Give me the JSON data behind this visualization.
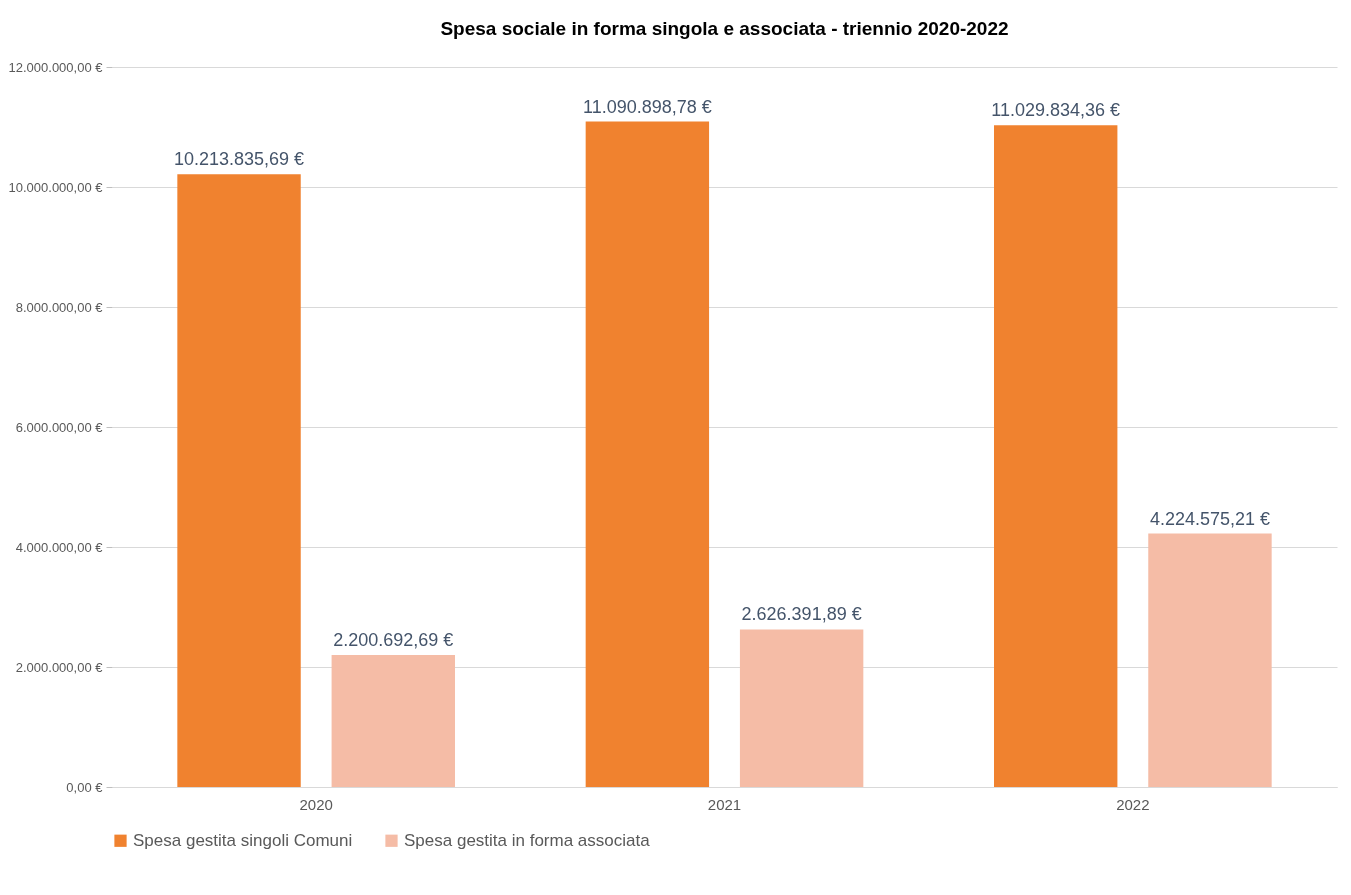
{
  "chart_data": {
    "type": "bar",
    "title": "Spesa sociale in forma singola e associata - triennio 2020-2022",
    "categories": [
      "2020",
      "2021",
      "2022"
    ],
    "series": [
      {
        "name": "Spesa gestita singoli Comuni",
        "color": "#f0822f",
        "values": [
          10213835.69,
          11090898.78,
          11029834.36
        ],
        "value_labels": [
          "10.213.835,69 €",
          "11.090.898,78 €",
          "11.029.834,36 €"
        ]
      },
      {
        "name": "Spesa gestita in forma associata",
        "color": "#f5bca6",
        "values": [
          2200692.69,
          2626391.89,
          4224575.21
        ],
        "value_labels": [
          "2.200.692,69 €",
          "2.626.391,89 €",
          "4.224.575,21 €"
        ]
      }
    ],
    "ylim": [
      0,
      12000000
    ],
    "yticks": [
      {
        "value": 0,
        "label": "0,00 €"
      },
      {
        "value": 2000000,
        "label": "2.000.000,00 €"
      },
      {
        "value": 4000000,
        "label": "4.000.000,00 €"
      },
      {
        "value": 6000000,
        "label": "6.000.000,00 €"
      },
      {
        "value": 8000000,
        "label": "8.000.000,00 €"
      },
      {
        "value": 10000000,
        "label": "10.000.000,00 €"
      },
      {
        "value": 12000000,
        "label": "12.000.000,00 €"
      }
    ],
    "grid": "y",
    "legend": "bottom"
  }
}
